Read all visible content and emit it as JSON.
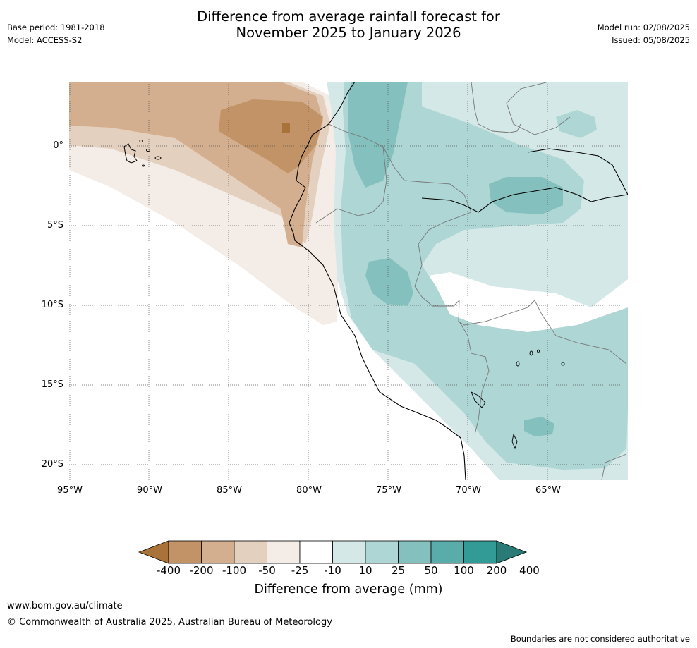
{
  "header": {
    "base_period": "Base period: 1981-2018",
    "model": "Model: ACCESS-S2",
    "title_line1": "Difference from average rainfall forecast for",
    "title_line2": "November 2025 to January 2026",
    "model_run": "Model run: 02/08/2025",
    "issued": "Issued: 05/08/2025"
  },
  "map": {
    "lat_labels": [
      "0°",
      "5°S",
      "10°S",
      "15°S",
      "20°S"
    ],
    "lon_labels": [
      "95°W",
      "90°W",
      "85°W",
      "80°W",
      "75°W",
      "70°W",
      "65°W"
    ]
  },
  "colorbar": {
    "title": "Difference from average (mm)",
    "tick_labels": [
      "-400",
      "-200",
      "-100",
      "-50",
      "-25",
      "-10",
      "10",
      "25",
      "50",
      "100",
      "200",
      "400"
    ],
    "colors": [
      "#a87239",
      "#c19366",
      "#d3af8f",
      "#e4d0bf",
      "#f4ece6",
      "#ffffff",
      "#d4e8e7",
      "#add6d4",
      "#84c0be",
      "#5aacaa",
      "#339b96",
      "#2a7a76"
    ]
  },
  "footer": {
    "website": "www.bom.gov.au/climate",
    "copyright": "© Commonwealth of Australia 2025, Australian Bureau of Meteorology",
    "disclaimer": "Boundaries are not considered authoritative"
  }
}
